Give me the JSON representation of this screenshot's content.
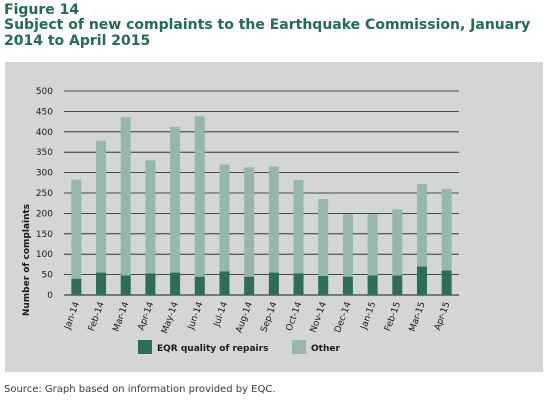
{
  "figure": {
    "label": "Figure 14",
    "title": "Subject of new complaints to the Earthquake Commission, January 2014 to April 2015"
  },
  "source": "Source: Graph based on information provided by EQC.",
  "colors": {
    "eqr": "#2b6e5a",
    "other": "#96b8aa",
    "panel": "#d4d6d6",
    "gridline": "#1a1a1a"
  },
  "chart_data": {
    "type": "bar",
    "stacked": true,
    "ylabel": "Number of complaints",
    "ylim": [
      0,
      500
    ],
    "yticks": [
      0,
      50,
      100,
      150,
      200,
      250,
      300,
      350,
      400,
      450,
      500
    ],
    "grid": true,
    "legend_position": "bottom",
    "categories": [
      "Jan-14",
      "Feb-14",
      "Mar-14",
      "Apr-14",
      "May-14",
      "Jun-14",
      "Jul-14",
      "Aug-14",
      "Sep-14",
      "Oct-14",
      "Nov-14",
      "Dec-14",
      "Jan-15",
      "Feb-15",
      "Mar-15",
      "Apr-15"
    ],
    "series": [
      {
        "name": "EQR quality of repairs",
        "values": [
          40,
          55,
          48,
          53,
          55,
          45,
          58,
          45,
          55,
          53,
          47,
          45,
          48,
          48,
          70,
          60
        ]
      },
      {
        "name": "Other",
        "values": [
          243,
          323,
          388,
          277,
          357,
          393,
          262,
          268,
          260,
          229,
          188,
          153,
          150,
          162,
          202,
          200
        ]
      }
    ]
  }
}
